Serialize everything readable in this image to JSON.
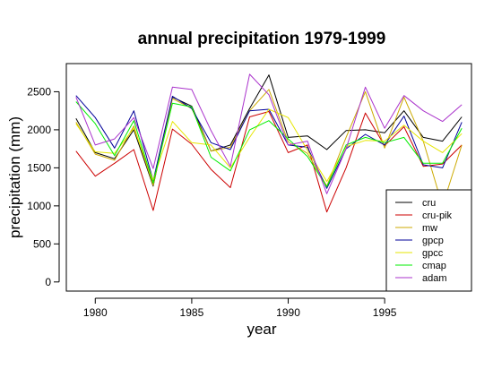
{
  "chart_data": {
    "type": "line",
    "title": "annual precipitation 1979-1999",
    "xlabel": "year",
    "ylabel": "precipitation (mm)",
    "xlim": [
      1978.5,
      1999.5
    ],
    "ylim": [
      -120,
      2870
    ],
    "x_ticks": [
      1980,
      1985,
      1990,
      1995
    ],
    "y_ticks": [
      0,
      500,
      1000,
      1500,
      2000,
      2500
    ],
    "grid": false,
    "legend_position": "bottom-right",
    "x": [
      1979,
      1980,
      1981,
      1982,
      1983,
      1984,
      1985,
      1986,
      1987,
      1988,
      1989,
      1990,
      1991,
      1992,
      1993,
      1994,
      1995,
      1996,
      1997,
      1998,
      1999
    ],
    "series": [
      {
        "name": "cru",
        "color": "#000000",
        "values": [
          2150,
          1700,
          1620,
          2000,
          1260,
          2430,
          2310,
          1720,
          1800,
          2280,
          2720,
          1900,
          1920,
          1740,
          1990,
          2000,
          1960,
          2250,
          1900,
          1850,
          2170
        ]
      },
      {
        "name": "cru-pik",
        "color": "#cc0000",
        "values": [
          1720,
          1390,
          1560,
          1740,
          940,
          2010,
          1810,
          1480,
          1240,
          2170,
          2240,
          1700,
          1800,
          920,
          1500,
          2220,
          1790,
          2040,
          1520,
          1550,
          1800
        ]
      },
      {
        "name": "mw",
        "color": "#ccaa00",
        "values": [
          2100,
          1680,
          1600,
          2050,
          1270,
          2410,
          2280,
          1720,
          1770,
          2250,
          2530,
          1840,
          1690,
          1260,
          1900,
          2500,
          1760,
          2430,
          1850,
          1000,
          1800
        ]
      },
      {
        "name": "gpcp",
        "color": "#000099",
        "values": [
          2450,
          2160,
          1760,
          2250,
          1330,
          2440,
          2280,
          1830,
          1740,
          2250,
          2270,
          1800,
          1770,
          1230,
          1750,
          1940,
          1800,
          2180,
          1540,
          1500,
          2100
        ]
      },
      {
        "name": "gpcc",
        "color": "#e6e600",
        "values": [
          2080,
          1710,
          1690,
          2020,
          1340,
          2110,
          1830,
          1800,
          1500,
          1900,
          2270,
          2160,
          1730,
          1320,
          1780,
          1860,
          1850,
          2060,
          1850,
          1700,
          1950
        ]
      },
      {
        "name": "cmap",
        "color": "#00ee00",
        "values": [
          2370,
          2080,
          1660,
          2120,
          1300,
          2350,
          2300,
          1640,
          1460,
          2000,
          2120,
          1880,
          1650,
          1250,
          1800,
          1900,
          1830,
          1900,
          1560,
          1560,
          2020
        ]
      },
      {
        "name": "adam",
        "color": "#aa33cc",
        "values": [
          2430,
          1800,
          1880,
          2160,
          1490,
          2560,
          2530,
          1990,
          1520,
          2730,
          2460,
          1800,
          1850,
          1160,
          1750,
          2560,
          2020,
          2450,
          2250,
          2110,
          2330
        ]
      }
    ]
  }
}
